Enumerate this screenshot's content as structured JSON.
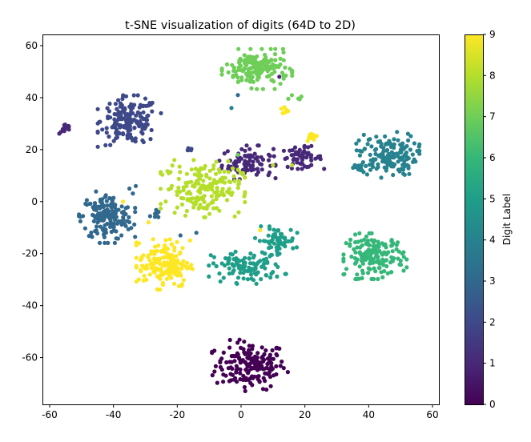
{
  "chart_data": {
    "type": "scatter",
    "title": "t-SNE visualization of digits (64D to 2D)",
    "xlabel": "",
    "ylabel": "",
    "xlim": [
      -62,
      62
    ],
    "ylim": [
      -78,
      64
    ],
    "xticks": [
      -60,
      -40,
      -20,
      0,
      20,
      40,
      60
    ],
    "yticks": [
      -60,
      -40,
      -20,
      0,
      20,
      40,
      60
    ],
    "colorbar": {
      "label": "Digit Label",
      "ticks": [
        0,
        1,
        2,
        3,
        4,
        5,
        6,
        7,
        8,
        9
      ],
      "colormap": "viridis"
    },
    "palette": [
      "#440154",
      "#482878",
      "#3e4989",
      "#31688e",
      "#26828e",
      "#1f9e89",
      "#35b779",
      "#6ece58",
      "#b5de2b",
      "#fde725"
    ],
    "clusters": [
      {
        "label": 0,
        "cx": 3,
        "cy": -63,
        "sx": 5.5,
        "sy": 4.5,
        "n": 180
      },
      {
        "label": 1,
        "cx": 2,
        "cy": 15,
        "sx": 4.0,
        "sy": 3.0,
        "n": 90
      },
      {
        "label": 1,
        "cx": 19,
        "cy": 17,
        "sx": 3.2,
        "sy": 2.0,
        "n": 55
      },
      {
        "label": 1,
        "cx": -55,
        "cy": 28,
        "sx": 1.0,
        "sy": 1.0,
        "n": 14
      },
      {
        "label": 2,
        "cx": -35,
        "cy": 31,
        "sx": 4.5,
        "sy": 4.5,
        "n": 170
      },
      {
        "label": 2,
        "cx": -17,
        "cy": 20,
        "sx": 1.0,
        "sy": 0.5,
        "n": 6
      },
      {
        "label": 3,
        "cx": -42,
        "cy": -6,
        "sx": 4.0,
        "sy": 4.5,
        "n": 170
      },
      {
        "label": 3,
        "cx": -27,
        "cy": -5,
        "sx": 0.7,
        "sy": 1.0,
        "n": 8
      },
      {
        "label": 4,
        "cx": 46,
        "cy": 18,
        "sx": 4.5,
        "sy": 4.0,
        "n": 150
      },
      {
        "label": 4,
        "cx": 37,
        "cy": 13,
        "sx": 1.5,
        "sy": 1.0,
        "n": 14
      },
      {
        "label": 5,
        "cx": 2,
        "cy": -25,
        "sx": 5.5,
        "sy": 3.0,
        "n": 110
      },
      {
        "label": 5,
        "cx": 11,
        "cy": -15,
        "sx": 3.0,
        "sy": 2.5,
        "n": 60
      },
      {
        "label": 6,
        "cx": 42,
        "cy": -21,
        "sx": 4.5,
        "sy": 4.0,
        "n": 170
      },
      {
        "label": 7,
        "cx": 5,
        "cy": 51,
        "sx": 5.0,
        "sy": 3.5,
        "n": 170
      },
      {
        "label": 7,
        "cx": 17,
        "cy": 40,
        "sx": 1.0,
        "sy": 0.5,
        "n": 5
      },
      {
        "label": 8,
        "cx": -12,
        "cy": 5,
        "sx": 6.0,
        "sy": 5.0,
        "n": 180
      },
      {
        "label": 8,
        "cx": -24,
        "cy": 11,
        "sx": 1.0,
        "sy": 0.6,
        "n": 4
      },
      {
        "label": 9,
        "cx": -24,
        "cy": -24,
        "sx": 4.0,
        "sy": 4.5,
        "n": 170
      },
      {
        "label": 9,
        "cx": 22,
        "cy": 25,
        "sx": 1.0,
        "sy": 1.0,
        "n": 14
      },
      {
        "label": 9,
        "cx": 14,
        "cy": 35,
        "sx": 0.8,
        "sy": 0.8,
        "n": 6
      }
    ],
    "outliers": [
      {
        "x": -3,
        "y": 36,
        "label": 4
      },
      {
        "x": -1,
        "y": 41,
        "label": 3
      },
      {
        "x": 12,
        "y": 48,
        "label": 1
      },
      {
        "x": -33,
        "y": 6,
        "label": 3
      },
      {
        "x": -35,
        "y": 5,
        "label": 3
      },
      {
        "x": -19,
        "y": -13,
        "label": 3
      },
      {
        "x": -14,
        "y": -12,
        "label": 3
      },
      {
        "x": -37,
        "y": 0,
        "label": 9
      },
      {
        "x": 6,
        "y": -11,
        "label": 9
      },
      {
        "x": -29,
        "y": -8,
        "label": 9
      },
      {
        "x": -32,
        "y": -16,
        "label": 9
      },
      {
        "x": 10,
        "y": 14,
        "label": 8
      },
      {
        "x": 16,
        "y": 14,
        "label": 8
      },
      {
        "x": -1,
        "y": 18,
        "label": 7
      }
    ]
  }
}
